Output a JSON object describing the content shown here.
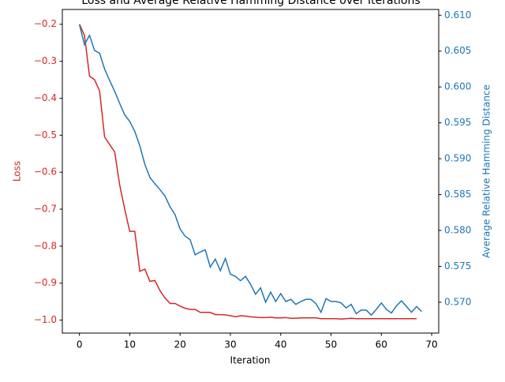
{
  "chart_data": {
    "type": "line",
    "title": "Loss and Average Relative Hamming Distance over Iterations",
    "xlabel": "Iteration",
    "ylabel": "Loss",
    "y2label": "Average Relative Hamming Distance",
    "x": [
      0,
      1,
      2,
      3,
      4,
      5,
      6,
      7,
      8,
      9,
      10,
      11,
      12,
      13,
      14,
      15,
      16,
      17,
      18,
      19,
      20,
      21,
      22,
      23,
      24,
      25,
      26,
      27,
      28,
      29,
      30,
      31,
      32,
      33,
      34,
      35,
      36,
      37,
      38,
      39,
      40,
      41,
      42,
      43,
      44,
      45,
      46,
      47,
      48,
      49,
      50,
      51,
      52,
      53,
      54,
      55,
      56,
      57,
      58,
      59,
      60,
      61,
      62,
      63,
      64,
      65,
      66,
      67,
      68
    ],
    "series": [
      {
        "name": "Loss",
        "color": "#d62728",
        "axis": "y",
        "values": [
          -0.2,
          -0.23,
          -0.34,
          -0.35,
          -0.38,
          -0.505,
          -0.525,
          -0.545,
          -0.635,
          -0.7,
          -0.76,
          -0.76,
          -0.868,
          -0.862,
          -0.895,
          -0.893,
          -0.92,
          -0.94,
          -0.955,
          -0.955,
          -0.962,
          -0.968,
          -0.971,
          -0.971,
          -0.979,
          -0.979,
          -0.979,
          -0.985,
          -0.985,
          -0.986,
          -0.988,
          -0.991,
          -0.988,
          -0.989,
          -0.991,
          -0.992,
          -0.993,
          -0.993,
          -0.992,
          -0.994,
          -0.994,
          -0.993,
          -0.995,
          -0.995,
          -0.994,
          -0.994,
          -0.994,
          -0.994,
          -0.996,
          -0.996,
          -0.996,
          -0.996,
          -0.997,
          -0.996,
          -0.995,
          -0.996,
          -0.996,
          -0.996,
          -0.996,
          -0.996,
          -0.996,
          -0.996,
          -0.996,
          -0.996,
          -0.996,
          -0.996,
          -0.996,
          -0.996,
          null
        ]
      },
      {
        "name": "Average Relative Hamming Distance",
        "color": "#1f77b4",
        "axis": "y2",
        "values": [
          0.6087,
          0.6059,
          0.6072,
          0.6051,
          0.6047,
          0.6025,
          0.6009,
          0.5994,
          0.5977,
          0.5961,
          0.5952,
          0.5938,
          0.5918,
          0.5892,
          0.5874,
          0.5865,
          0.5857,
          0.5848,
          0.5833,
          0.5822,
          0.5802,
          0.5792,
          0.5787,
          0.5766,
          0.577,
          0.5773,
          0.5749,
          0.576,
          0.5744,
          0.5761,
          0.5739,
          0.5736,
          0.573,
          0.5736,
          0.5725,
          0.5711,
          0.572,
          0.57,
          0.5714,
          0.5701,
          0.5712,
          0.5701,
          0.5704,
          0.5697,
          0.5701,
          0.5704,
          0.5704,
          0.5698,
          0.5686,
          0.5705,
          0.5701,
          0.5701,
          0.5699,
          0.5692,
          0.5697,
          0.5684,
          0.5689,
          0.5689,
          0.5682,
          0.569,
          0.5699,
          0.569,
          0.5685,
          0.5695,
          0.5702,
          0.5694,
          0.5686,
          0.5694,
          0.5687
        ]
      }
    ],
    "xlim": [
      -3.4,
      71.4
    ],
    "xticks": [
      0,
      10,
      20,
      30,
      40,
      50,
      60,
      70
    ],
    "ylim": [
      -1.035,
      -0.16
    ],
    "yticks": [
      {
        "value": -1.0,
        "label": "−1.0"
      },
      {
        "value": -0.9,
        "label": "−0.9"
      },
      {
        "value": -0.8,
        "label": "−0.8"
      },
      {
        "value": -0.7,
        "label": "−0.7"
      },
      {
        "value": -0.6,
        "label": "−0.6"
      },
      {
        "value": -0.5,
        "label": "−0.5"
      },
      {
        "value": -0.4,
        "label": "−0.4"
      },
      {
        "value": -0.3,
        "label": "−0.3"
      },
      {
        "value": -0.2,
        "label": "−0.2"
      }
    ],
    "y2lim": [
      0.5657,
      0.6108
    ],
    "y2ticks": [
      {
        "value": 0.57,
        "label": "0.570"
      },
      {
        "value": 0.575,
        "label": "0.575"
      },
      {
        "value": 0.58,
        "label": "0.580"
      },
      {
        "value": 0.585,
        "label": "0.585"
      },
      {
        "value": 0.59,
        "label": "0.590"
      },
      {
        "value": 0.595,
        "label": "0.595"
      },
      {
        "value": 0.6,
        "label": "0.600"
      },
      {
        "value": 0.605,
        "label": "0.605"
      },
      {
        "value": 0.61,
        "label": "0.610"
      }
    ]
  }
}
